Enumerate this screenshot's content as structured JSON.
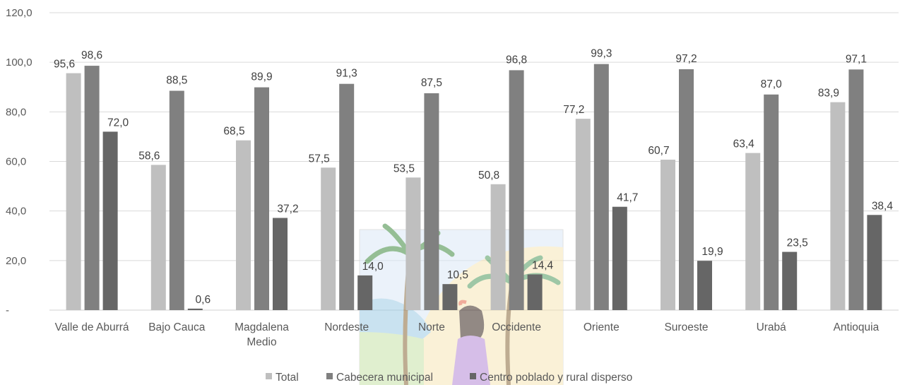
{
  "chart_data": {
    "type": "bar",
    "title": "",
    "xlabel": "",
    "ylabel": "",
    "ylim": [
      0,
      120
    ],
    "yticks": [
      "-",
      "20,0",
      "40,0",
      "60,0",
      "80,0",
      "100,0",
      "120,0"
    ],
    "grid": true,
    "legend_position": "bottom",
    "categories": [
      "Valle de Aburrá",
      "Bajo Cauca",
      "Magdalena Medio",
      "Nordeste",
      "Norte",
      "Occidente",
      "Oriente",
      "Suroeste",
      "Urabá",
      "Antioquia"
    ],
    "series": [
      {
        "name": "Total",
        "color": "#bfbfbf",
        "values": [
          95.6,
          58.6,
          68.5,
          57.5,
          53.5,
          50.8,
          77.2,
          60.7,
          63.4,
          83.9
        ],
        "labels": [
          "95,6",
          "58,6",
          "68,5",
          "57,5",
          "53,5",
          "50,8",
          "77,2",
          "60,7",
          "63,4",
          "83,9"
        ]
      },
      {
        "name": "Cabecera municipal",
        "color": "#808080",
        "values": [
          98.6,
          88.5,
          89.9,
          91.3,
          87.5,
          96.8,
          99.3,
          97.2,
          87.0,
          97.1
        ],
        "labels": [
          "98,6",
          "88,5",
          "89,9",
          "91,3",
          "87,5",
          "96,8",
          "99,3",
          "97,2",
          "87,0",
          "97,1"
        ]
      },
      {
        "name": "Centro poblado y rural disperso",
        "color": "#666666",
        "values": [
          72.0,
          0.6,
          37.2,
          14.0,
          10.5,
          14.4,
          41.7,
          19.9,
          23.5,
          38.4
        ],
        "labels": [
          "72,0",
          "0,6",
          "37,2",
          "14,0",
          "10,5",
          "14,4",
          "41,7",
          "19,9",
          "23,5",
          "38,4"
        ]
      }
    ]
  }
}
